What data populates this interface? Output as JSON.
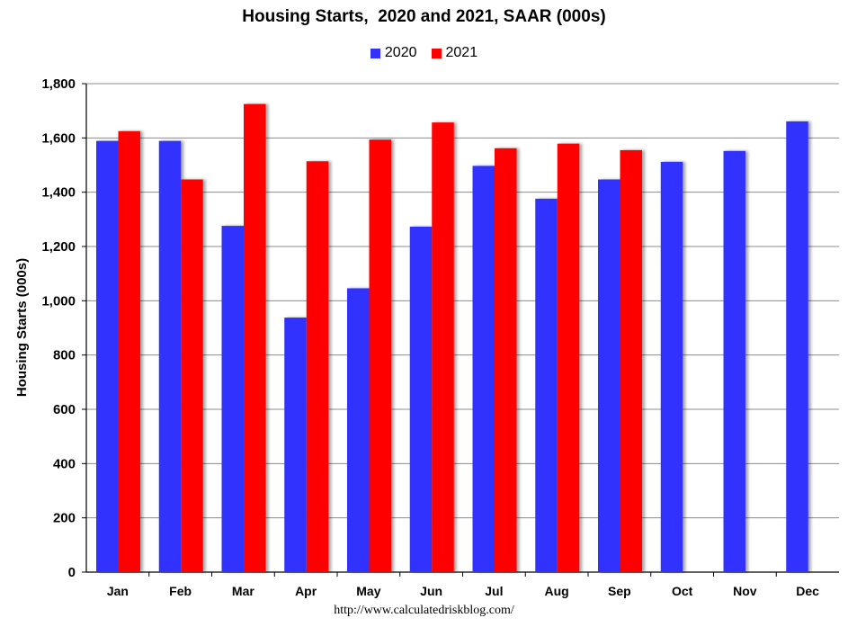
{
  "chart_data": {
    "type": "bar",
    "title": "Housing Starts,  2020 and 2021, SAAR (000s)",
    "ylabel": "Housing Starts (000s)",
    "xlabel": "",
    "categories": [
      "Jan",
      "Feb",
      "Mar",
      "Apr",
      "May",
      "Jun",
      "Jul",
      "Aug",
      "Sep",
      "Oct",
      "Nov",
      "Dec"
    ],
    "series": [
      {
        "name": "2020",
        "color": "#3333ff",
        "values": [
          1589,
          1589,
          1276,
          938,
          1046,
          1273,
          1497,
          1376,
          1447,
          1512,
          1552,
          1661
        ]
      },
      {
        "name": "2021",
        "color": "#ff0000",
        "values": [
          1625,
          1447,
          1725,
          1514,
          1594,
          1657,
          1562,
          1579,
          1555,
          null,
          null,
          null
        ]
      }
    ],
    "ylim": [
      0,
      1800
    ],
    "yticks": [
      "0",
      "200",
      "400",
      "600",
      "800",
      "1,000",
      "1,200",
      "1,400",
      "1,600",
      "1,800"
    ],
    "grid": true,
    "legend_position": "top-center"
  },
  "source_note": "http://www.calculatedriskblog.com/"
}
